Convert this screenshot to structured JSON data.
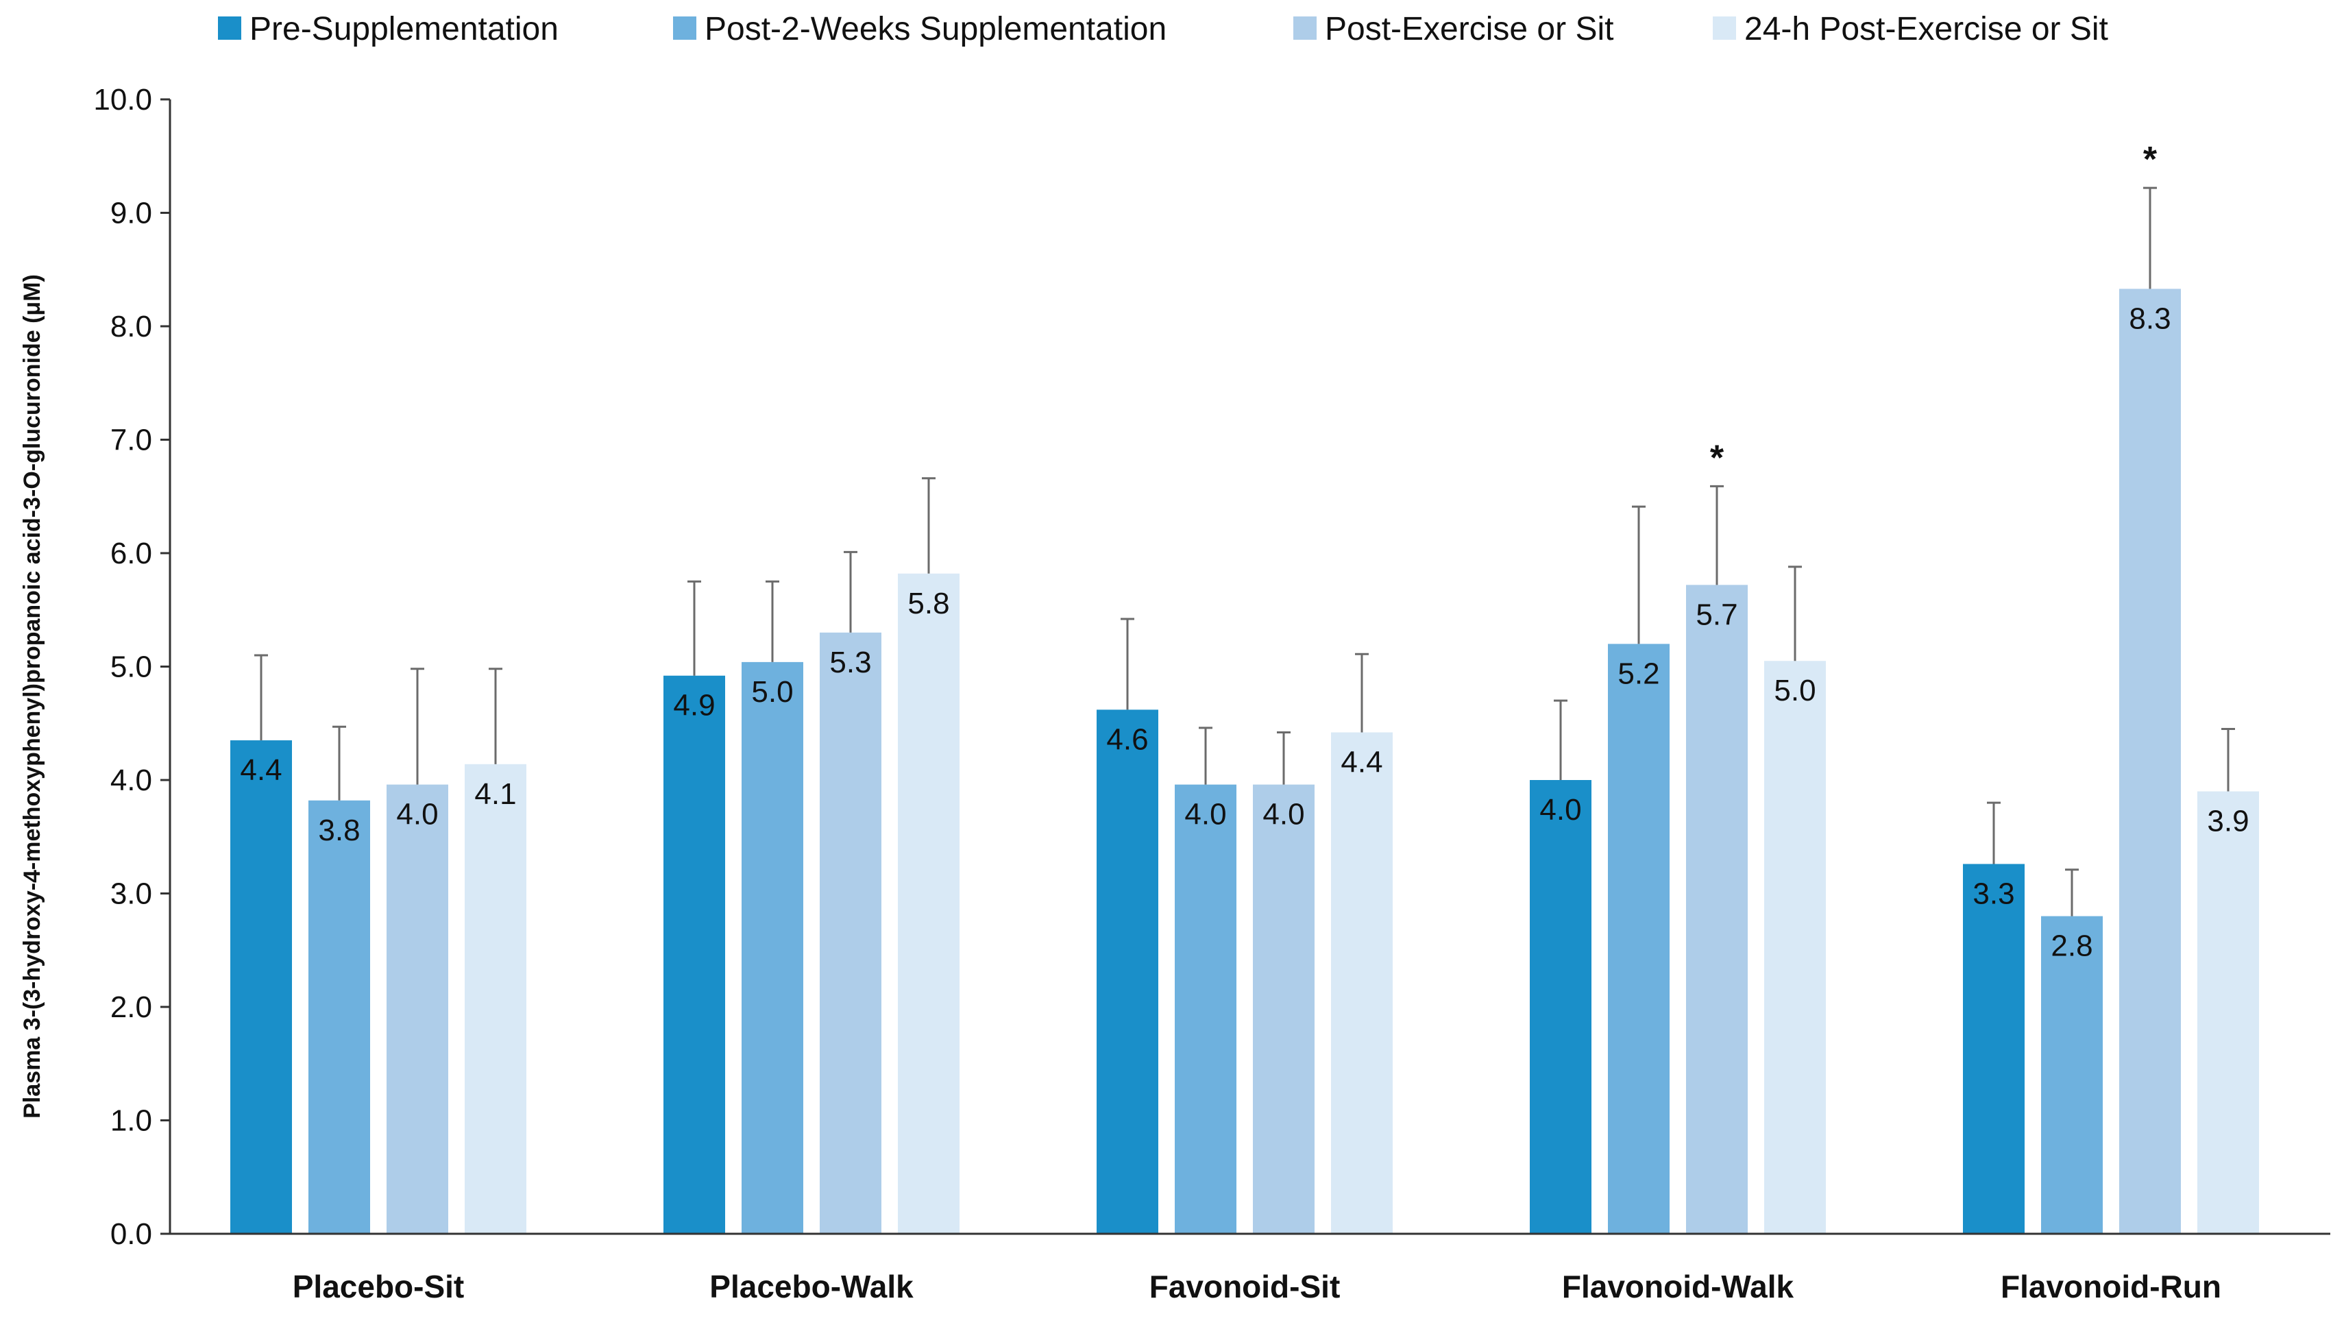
{
  "chart_data": {
    "type": "bar",
    "title": "",
    "xlabel": "",
    "ylabel": "Plasma 3-(3-hydroxy-4-methoxyphenyl)propanoic acid-3-O-glucuronide (μM)",
    "ylim": [
      0,
      10
    ],
    "yticks": [
      "0.0",
      "1.0",
      "2.0",
      "3.0",
      "4.0",
      "5.0",
      "6.0",
      "7.0",
      "8.0",
      "9.0",
      "10.0"
    ],
    "categories": [
      "Placebo-Sit",
      "Placebo-Walk",
      "Favonoid-Sit",
      "Flavonoid-Walk",
      "Flavonoid-Run"
    ],
    "series": [
      {
        "name": "Pre-Supplementation",
        "color": "#1a8fc9",
        "values": [
          4.35,
          4.92,
          4.62,
          4.0,
          3.26
        ],
        "labels": [
          "4.4",
          "4.9",
          "4.6",
          "4.0",
          "3.3"
        ],
        "error": [
          0.75,
          0.83,
          0.8,
          0.7,
          0.54
        ],
        "significant": [
          false,
          false,
          false,
          false,
          false
        ]
      },
      {
        "name": "Post-2-Weeks Supplementation",
        "color": "#6eb1de",
        "values": [
          3.82,
          5.04,
          3.96,
          5.2,
          2.8
        ],
        "labels": [
          "3.8",
          "5.0",
          "4.0",
          "5.2",
          "2.8"
        ],
        "error": [
          0.65,
          0.71,
          0.5,
          1.21,
          0.41
        ],
        "significant": [
          false,
          false,
          false,
          false,
          false
        ]
      },
      {
        "name": "Post-Exercise or Sit",
        "color": "#aecde9",
        "values": [
          3.96,
          5.3,
          3.96,
          5.72,
          8.33
        ],
        "labels": [
          "4.0",
          "5.3",
          "4.0",
          "5.7",
          "8.3"
        ],
        "error": [
          1.02,
          0.71,
          0.46,
          0.87,
          0.89
        ],
        "significant": [
          false,
          false,
          false,
          true,
          true
        ]
      },
      {
        "name": "24-h Post-Exercise or Sit",
        "color": "#d9e9f6",
        "values": [
          4.14,
          5.82,
          4.42,
          5.05,
          3.9
        ],
        "labels": [
          "4.1",
          "5.8",
          "4.4",
          "5.0",
          "3.9"
        ],
        "error": [
          0.84,
          0.84,
          0.69,
          0.83,
          0.55
        ],
        "significant": [
          false,
          false,
          false,
          false,
          false
        ]
      }
    ],
    "significance_marker": "*",
    "error_color": "#6b6b6b",
    "legend_position": "top"
  }
}
